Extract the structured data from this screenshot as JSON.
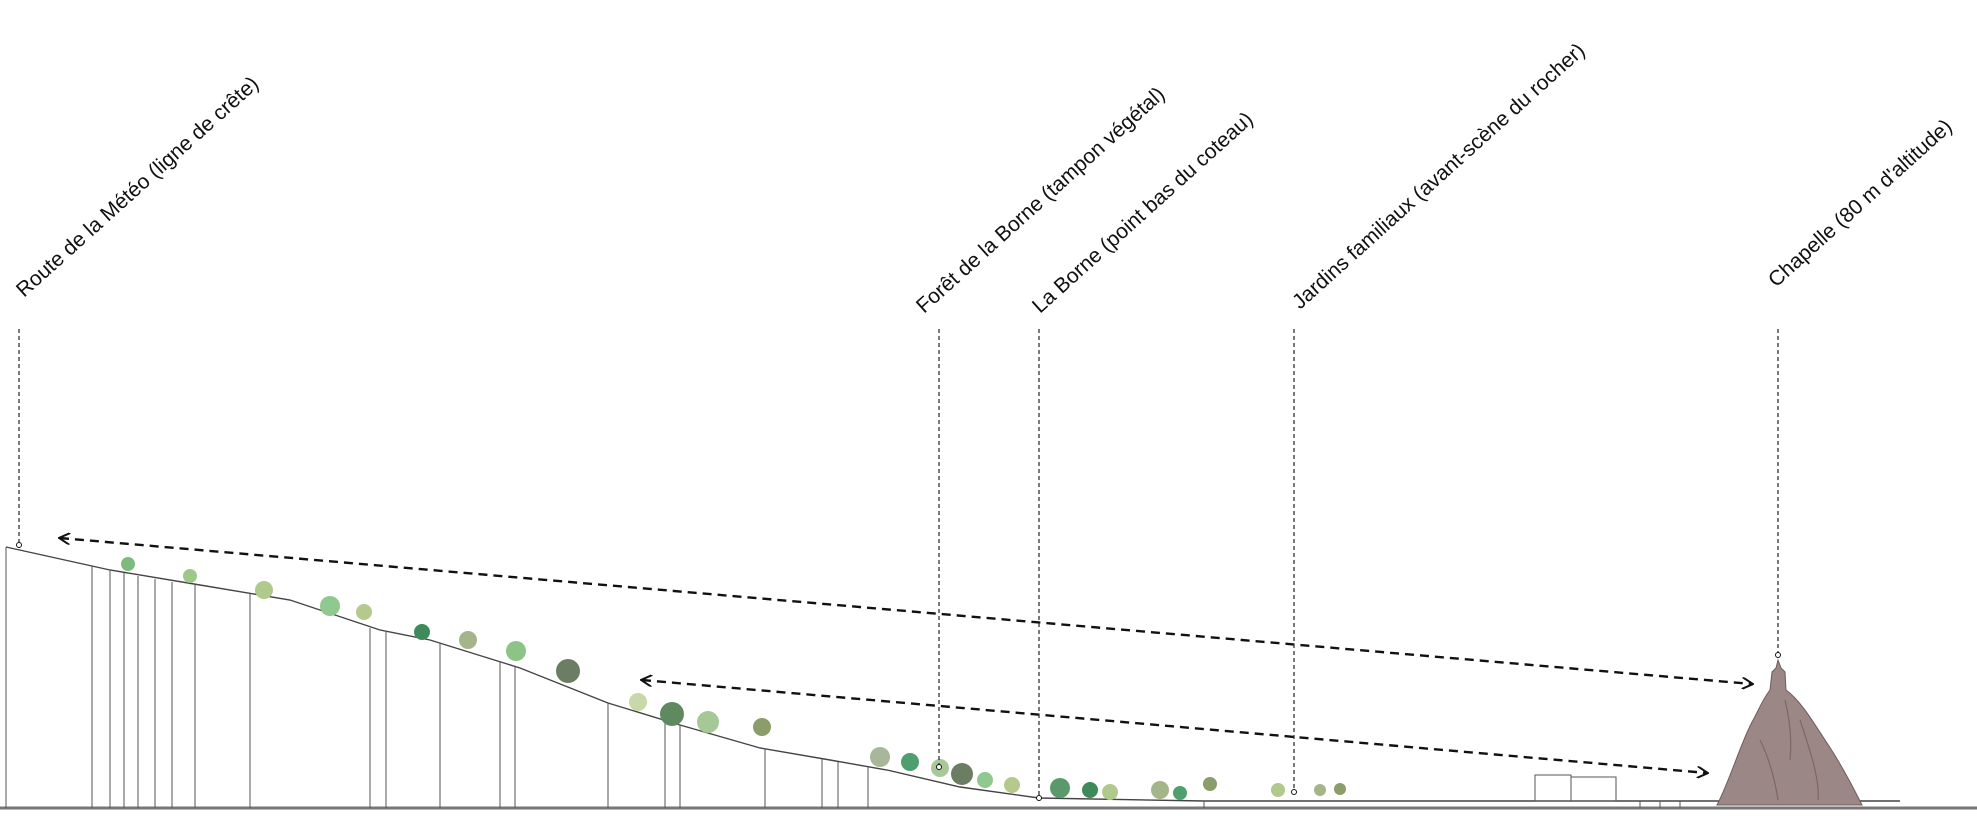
{
  "annotations": [
    "Route de la Météo (ligne de crête)",
    "Forêt de la Borne (tampon végétal)",
    "La Borne (point bas du coteau)",
    "Jardins familiaux (avant-scène du rocher)",
    "Chapelle (80 m d'altitude)"
  ]
}
